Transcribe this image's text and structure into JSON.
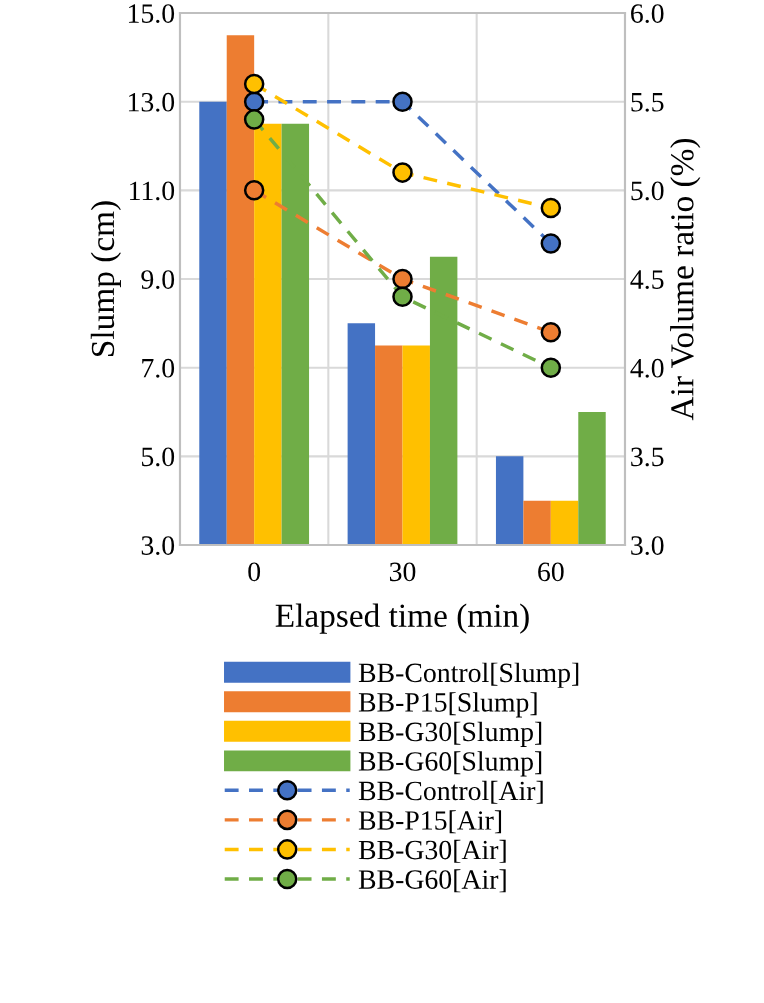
{
  "chart_data": {
    "type": "bar",
    "xlabel": "Elapsed time (min)",
    "ylabel": "Slump (cm)",
    "y2label": "Air Volume ratio (%)",
    "categories": [
      "0",
      "30",
      "60"
    ],
    "series": [
      {
        "name": "BB-Control[Slump]",
        "color": "#4472c4",
        "values": [
          13,
          8,
          5
        ]
      },
      {
        "name": "BB-P15[Slump]",
        "color": "#ed7d31",
        "values": [
          14.5,
          7.5,
          4
        ]
      },
      {
        "name": "BB-G30[Slump]",
        "color": "#ffc000",
        "values": [
          12.5,
          7.5,
          4
        ]
      },
      {
        "name": "BB-G60[Slump]",
        "color": "#70ad47",
        "values": [
          12.5,
          9.5,
          6
        ]
      },
      {
        "name": "BB-Control[Air]",
        "type": "line",
        "axis": "y2",
        "color": "#4472c4",
        "values": [
          5.5,
          5.5,
          4.7
        ]
      },
      {
        "name": "BB-P15[Air]",
        "type": "line",
        "axis": "y2",
        "color": "#ed7d31",
        "values": [
          5.0,
          4.5,
          4.2
        ]
      },
      {
        "name": "BB-G30[Air]",
        "type": "line",
        "axis": "y2",
        "color": "#ffc000",
        "values": [
          5.6,
          5.1,
          4.9
        ]
      },
      {
        "name": "BB-G60[Air]",
        "type": "line",
        "axis": "y2",
        "color": "#70ad47",
        "values": [
          5.4,
          4.4,
          4.0
        ]
      }
    ],
    "ylim": [
      3,
      15
    ],
    "yticks": [
      {
        "value": 3,
        "label": "3.0"
      },
      {
        "value": 5,
        "label": "5.0"
      },
      {
        "value": 7,
        "label": "7.0"
      },
      {
        "value": 9,
        "label": "9.0"
      },
      {
        "value": 11,
        "label": "11.0"
      },
      {
        "value": 13,
        "label": "13.0"
      },
      {
        "value": 15,
        "label": "15.0"
      }
    ],
    "y2lim": [
      3,
      6
    ],
    "y2ticks": [
      {
        "value": 3,
        "label": "3.0"
      },
      {
        "value": 3.5,
        "label": "3.5"
      },
      {
        "value": 4,
        "label": "4.0"
      },
      {
        "value": 4.5,
        "label": "4.5"
      },
      {
        "value": 5,
        "label": "5.0"
      },
      {
        "value": 5.5,
        "label": "5.5"
      },
      {
        "value": 6,
        "label": "6.0"
      }
    ],
    "grid": true,
    "legend": "bottom",
    "marker": "circle",
    "line_style": "dashed"
  }
}
